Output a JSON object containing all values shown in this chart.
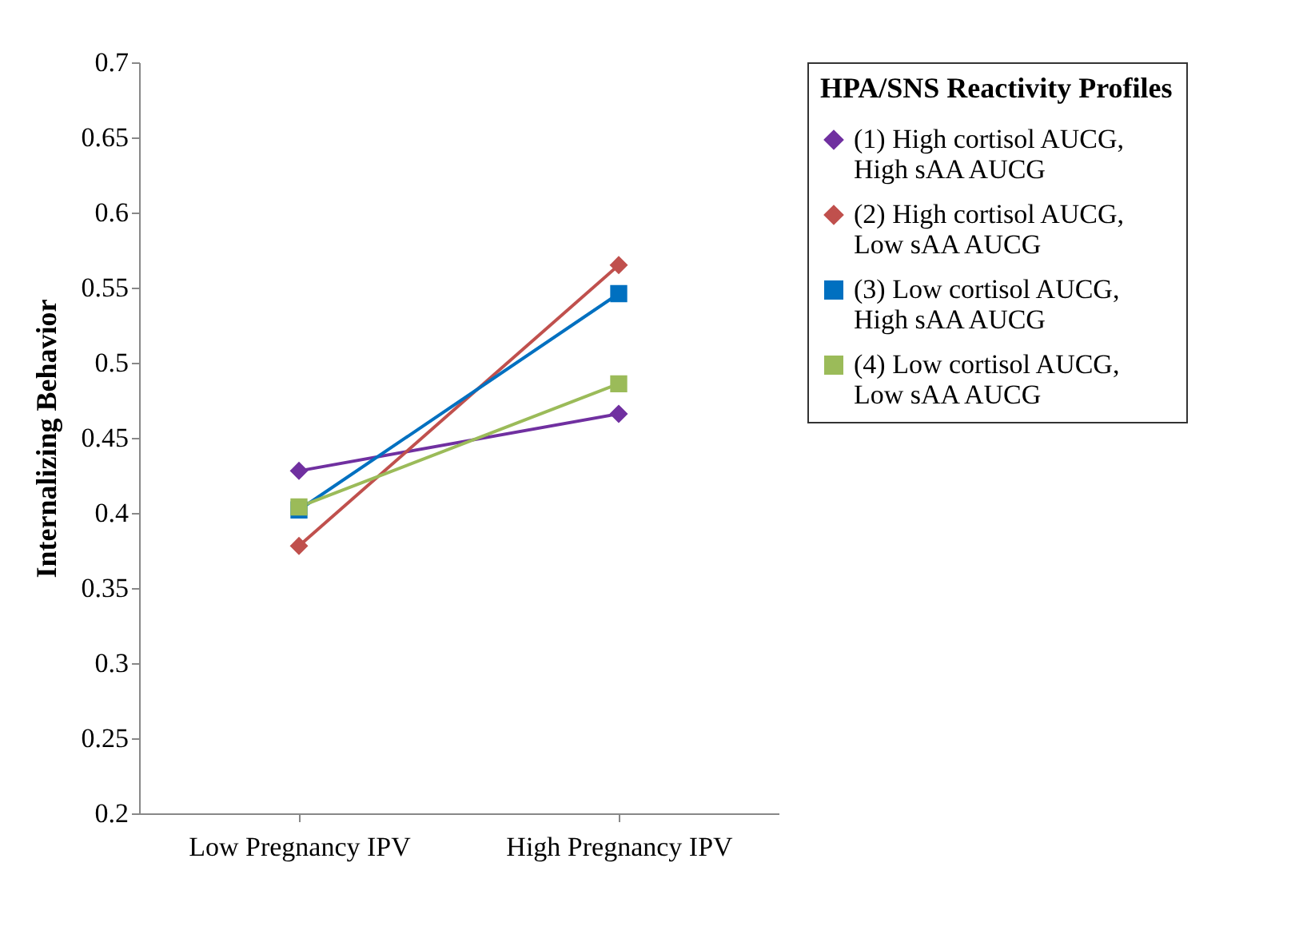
{
  "chart_data": {
    "type": "line",
    "ylabel": "Internalizing  Behavior",
    "legend_title": "HPA/SNS Reactivity Profiles",
    "categories": [
      "Low Pregnancy IPV",
      "High Pregnancy IPV"
    ],
    "series": [
      {
        "name": "(1) High cortisol AUCG, High sAA AUCG",
        "color": "#7030a0",
        "marker": "diamond",
        "values": [
          0.428,
          0.466
        ]
      },
      {
        "name": "(2) High cortisol AUCG, Low sAA AUCG",
        "color": "#c0504d",
        "marker": "diamond",
        "values": [
          0.378,
          0.565
        ]
      },
      {
        "name": "(3) Low cortisol AUCG, High sAA AUCG",
        "color": "#0070c0",
        "marker": "square",
        "values": [
          0.402,
          0.546
        ]
      },
      {
        "name": "(4) Low cortisol AUCG, Low sAA AUCG",
        "color": "#9bbb59",
        "marker": "square",
        "values": [
          0.404,
          0.486
        ]
      }
    ],
    "ylim": [
      0.2,
      0.7
    ],
    "yticks": [
      0.2,
      0.25,
      0.3,
      0.35,
      0.4,
      0.45,
      0.5,
      0.55,
      0.6,
      0.65,
      0.7
    ],
    "grid": false,
    "legend": "right",
    "line_style": "solid"
  }
}
